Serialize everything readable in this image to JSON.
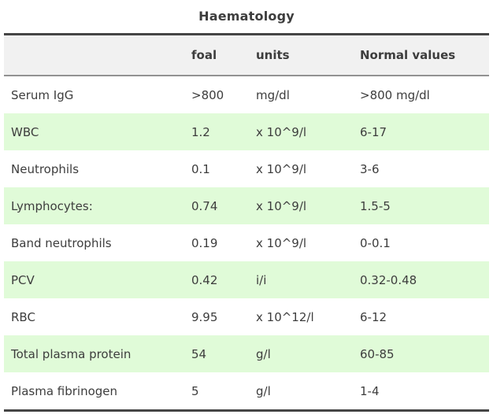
{
  "title": "Haematology",
  "colors": {
    "text": "#3d3d3d",
    "row_stripe_green": "#e0fbd8",
    "header_background": "#f1f1f1",
    "border_dark": "#454545",
    "border_mid_grey": "#919191",
    "page_background": "#ffffff"
  },
  "chart_data": {
    "type": "table",
    "title": "Haematology",
    "columns": [
      "",
      "foal",
      "units",
      "Normal values"
    ],
    "rows": [
      [
        "Serum IgG",
        ">800",
        "mg/dl",
        ">800 mg/dl"
      ],
      [
        "WBC",
        "1.2",
        "x 10^9/l",
        "6-17"
      ],
      [
        "Neutrophils",
        "0.1",
        "x 10^9/l",
        "3-6"
      ],
      [
        "Lymphocytes:",
        "0.74",
        "x 10^9/l",
        "1.5-5"
      ],
      [
        "Band neutrophils",
        "0.19",
        "x 10^9/l",
        "0-0.1"
      ],
      [
        "PCV",
        "0.42",
        "i/i",
        "0.32-0.48"
      ],
      [
        "RBC",
        "9.95",
        "x 10^12/l",
        "6-12"
      ],
      [
        "Total plasma protein",
        "54",
        "g/l",
        "60-85"
      ],
      [
        "Plasma fibrinogen",
        "5",
        "g/l",
        "1-4"
      ]
    ],
    "layout_hints": {
      "striped_rows": "even rows (WBC, Lymphocytes:, PCV, Total plasma protein) are light green",
      "header_row": "grey background, bold",
      "borders": "dark rule above header and below last row, grey rule under header"
    }
  }
}
